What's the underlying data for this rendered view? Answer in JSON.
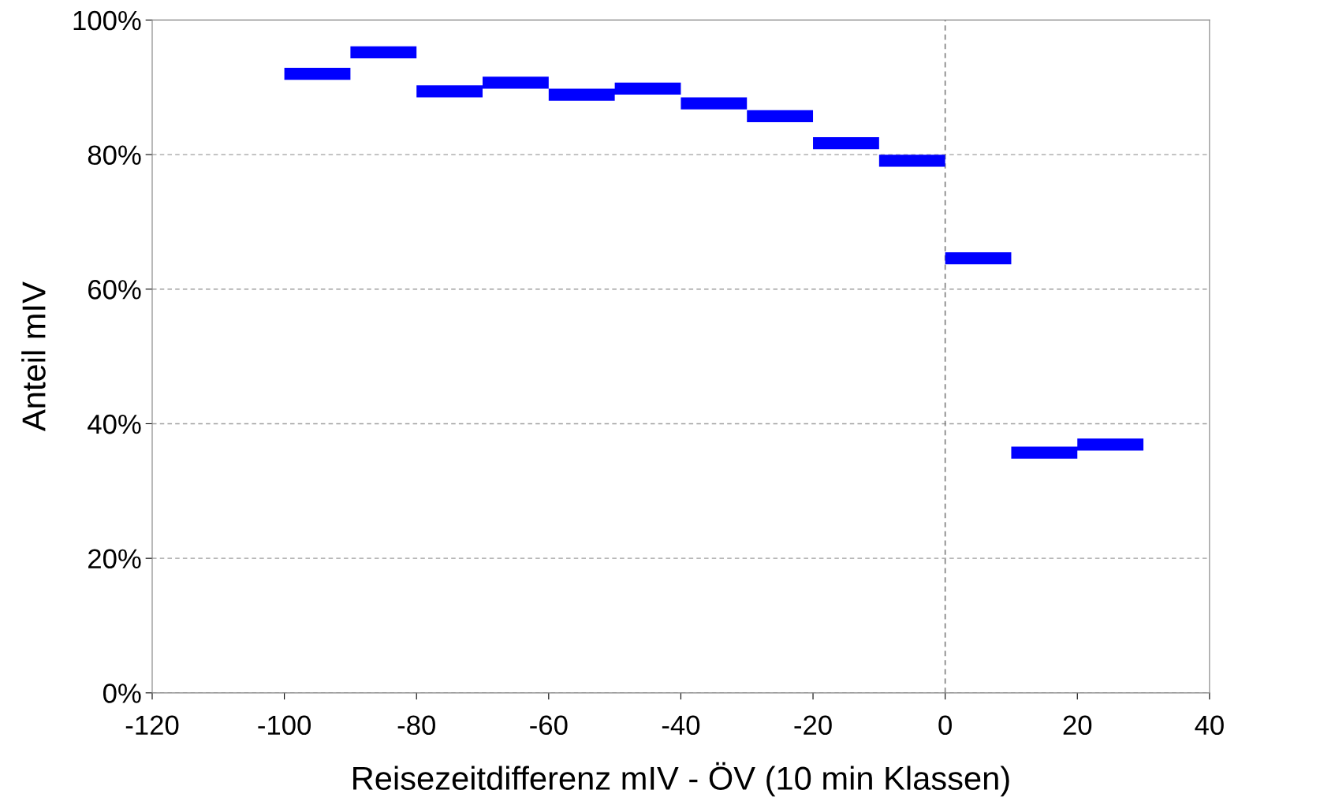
{
  "chart_data": {
    "type": "line",
    "xlabel": "Reisezeitdifferenz mIV - ÖV (10 min Klassen)",
    "ylabel": "Anteil mIV",
    "x": [
      -100,
      -90,
      null,
      -90,
      -80,
      null,
      -80,
      -70,
      null,
      -70,
      -60,
      null,
      -60,
      -50,
      null,
      -50,
      -40,
      null,
      -40,
      -30,
      null,
      -30,
      -20,
      null,
      -20,
      -10,
      null,
      -10,
      0,
      null,
      0,
      10,
      null,
      10,
      20,
      null,
      20,
      30,
      null
    ],
    "values": [
      92,
      92,
      null,
      95.2,
      95.2,
      null,
      89.4,
      89.4,
      null,
      90.7,
      90.7,
      null,
      88.9,
      88.9,
      null,
      89.8,
      89.8,
      null,
      87.6,
      87.6,
      null,
      85.7,
      85.7,
      null,
      81.7,
      81.7,
      null,
      79.1,
      79.1,
      null,
      64.6,
      64.6,
      null,
      35.7,
      35.7,
      null,
      36.9,
      36.9,
      null
    ],
    "color": "#0000ff",
    "line_style": "solid",
    "xlim": [
      -120,
      40
    ],
    "xticks": [
      -120,
      -100,
      -80,
      -60,
      -40,
      -20,
      0,
      20,
      40
    ],
    "ylim": [
      0,
      100
    ],
    "yticks": [
      {
        "value": 0,
        "label": "0%"
      },
      {
        "value": 20,
        "label": "20%"
      },
      {
        "value": 40,
        "label": "40%"
      },
      {
        "value": 60,
        "label": "60%"
      },
      {
        "value": 80,
        "label": "80%"
      },
      {
        "value": 100,
        "label": "100%"
      }
    ],
    "grid": "y",
    "ref_lines": [
      {
        "axis": "x",
        "value": 0,
        "line_style": "dashed",
        "color": "#808080"
      }
    ]
  }
}
